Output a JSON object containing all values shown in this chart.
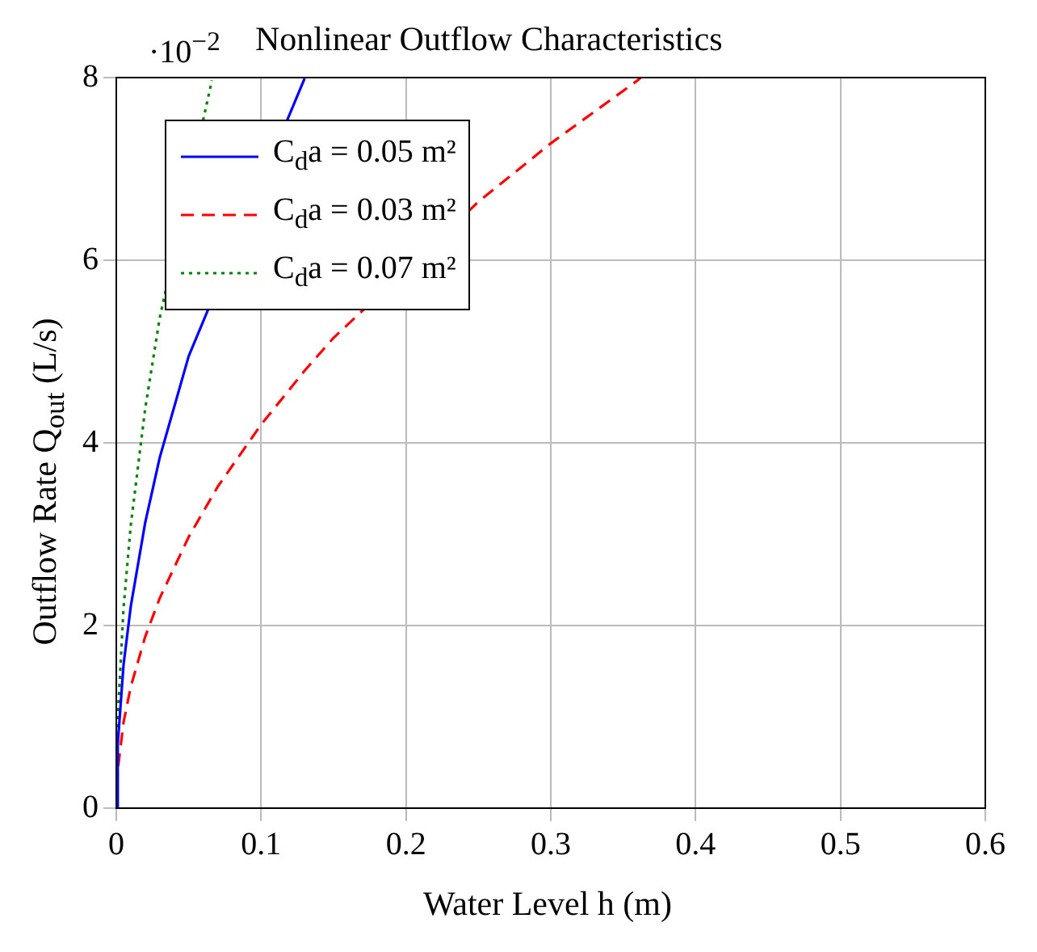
{
  "chart_data": {
    "type": "line",
    "title": "Nonlinear Outflow Characteristics",
    "xlabel": "Water Level h (m)",
    "ylabel": "Outflow Rate Q$_{out}$ (L/s)",
    "annotations": [
      "·10$^{−2}$"
    ],
    "xlim": [
      0,
      0.6
    ],
    "xticks": [
      0,
      0.1,
      0.2,
      0.3,
      0.4,
      0.5,
      0.6
    ],
    "ylim": [
      0,
      8
    ],
    "yticks": [
      0,
      2,
      4,
      6,
      8
    ],
    "grid": true,
    "legend": "top left",
    "marker": "none",
    "series": [
      {
        "name": "C$_{d}$a = 0.05 m²",
        "color": "#0000ff",
        "line_style": "solid",
        "x": [
          0,
          0.001,
          0.005,
          0.01,
          0.02,
          0.03,
          0.05,
          0.13
        ],
        "values": [
          0,
          0.7,
          1.57,
          2.21,
          3.13,
          3.84,
          4.95,
          7.99
        ]
      },
      {
        "name": "C$_{d}$a = 0.03 m²",
        "color": "#ff0000",
        "line_style": "dashed",
        "x": [
          0,
          0.001,
          0.005,
          0.01,
          0.02,
          0.03,
          0.05,
          0.07,
          0.1,
          0.13,
          0.15,
          0.25,
          0.3,
          0.36,
          0.362
        ],
        "values": [
          0,
          0.42,
          0.94,
          1.33,
          1.88,
          2.3,
          2.97,
          3.52,
          4.2,
          4.79,
          5.15,
          6.64,
          7.28,
          7.97,
          8.0
        ]
      },
      {
        "name": "C$_{d}$a = 0.07 m²",
        "color": "#008000",
        "line_style": "dotted",
        "x": [
          0,
          0.001,
          0.005,
          0.01,
          0.02,
          0.03,
          0.066
        ],
        "values": [
          0,
          0.98,
          2.19,
          3.1,
          4.38,
          5.37,
          7.97
        ]
      }
    ]
  }
}
